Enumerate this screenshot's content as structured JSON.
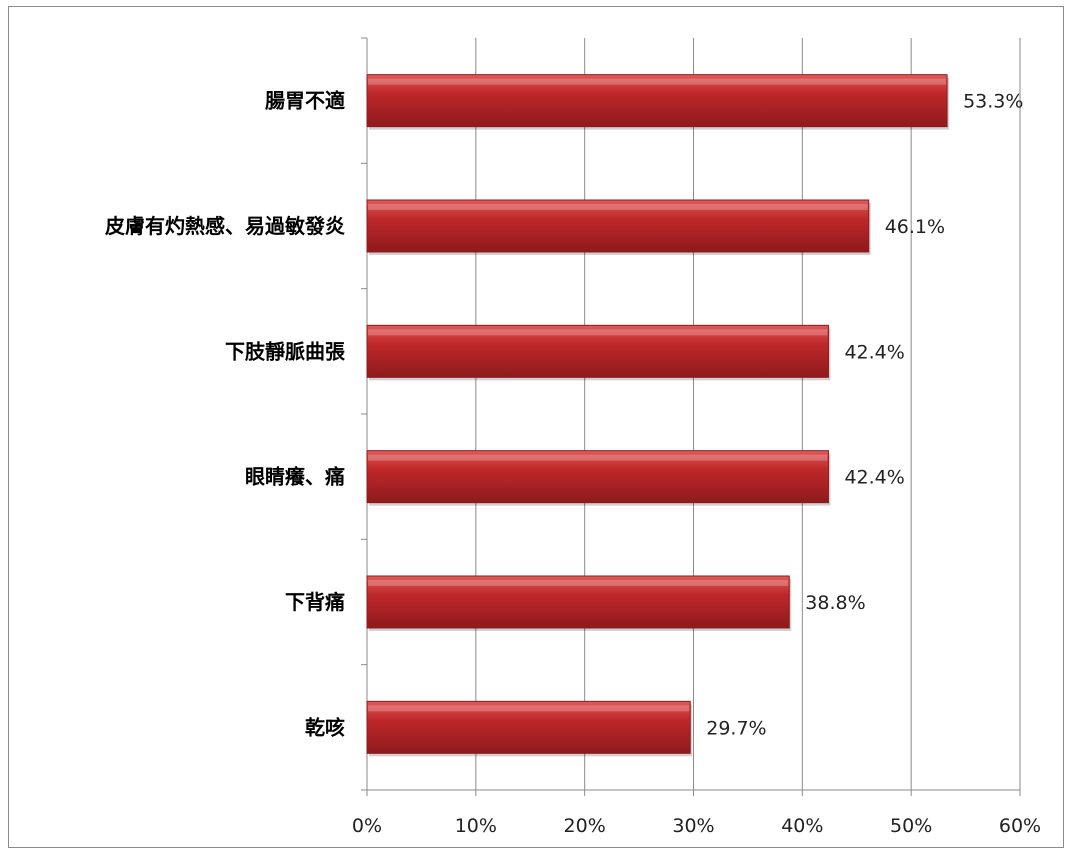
{
  "chart_data": {
    "type": "bar",
    "orientation": "horizontal",
    "categories": [
      "腸胃不適",
      "皮膚有灼熱感、易過敏發炎",
      "下肢靜脈曲張",
      "眼睛癢、痛",
      "下背痛",
      "乾咳"
    ],
    "values": [
      53.3,
      46.1,
      42.4,
      42.4,
      38.8,
      29.7
    ],
    "value_labels": [
      "53.3%",
      "46.1%",
      "42.4%",
      "42.4%",
      "38.8%",
      "29.7%"
    ],
    "x_ticks": [
      "0%",
      "10%",
      "20%",
      "30%",
      "40%",
      "50%",
      "60%"
    ],
    "xlim": [
      0,
      60
    ],
    "grid": true,
    "bar_color": "#c0282a",
    "bar_color_light": "#e05a5a",
    "bar_color_dark": "#8e1a1c"
  }
}
